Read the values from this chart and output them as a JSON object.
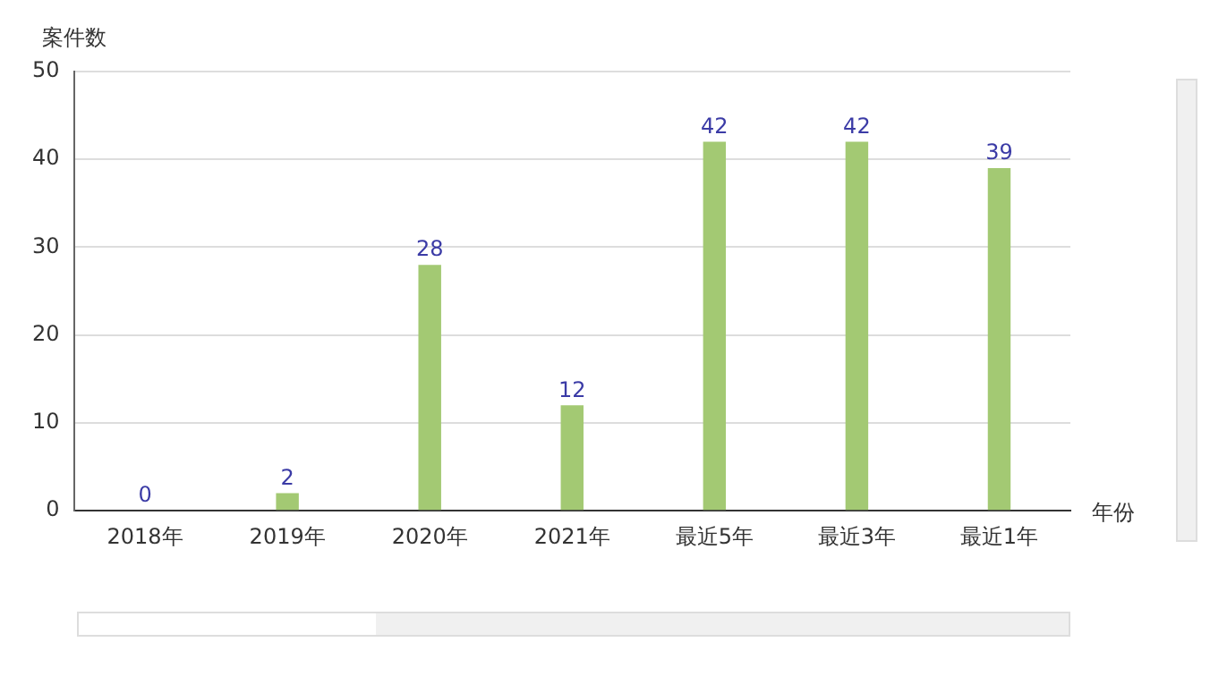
{
  "chart_data": {
    "type": "bar",
    "xlabel": "年份",
    "ylabel": "案件数",
    "categories": [
      "2018年",
      "2019年",
      "2020年",
      "2021年",
      "最近5年",
      "最近3年",
      "最近1年"
    ],
    "values": [
      0,
      2,
      28,
      12,
      42,
      42,
      39
    ],
    "color": "#a3c973",
    "ylim": [
      0,
      50
    ],
    "yticks": [
      0,
      10,
      20,
      30,
      40,
      50
    ],
    "grid": "y",
    "data_labels": true
  }
}
